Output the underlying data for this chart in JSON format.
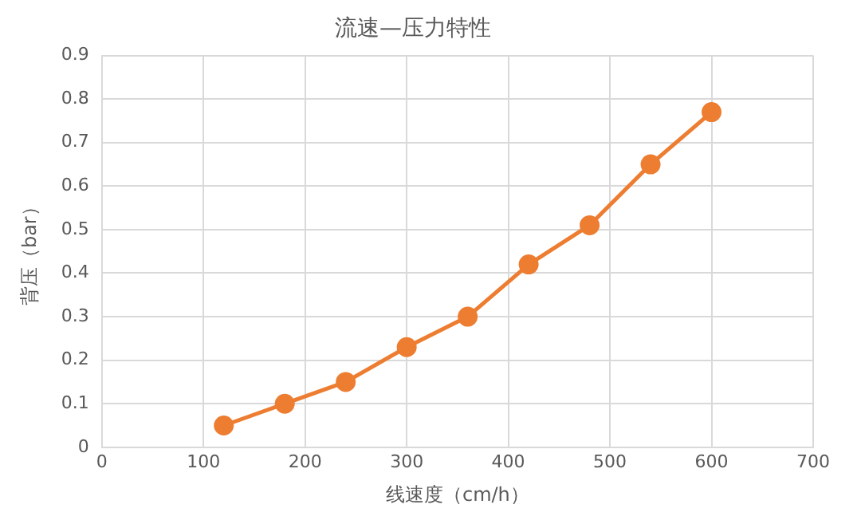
{
  "chart_data": {
    "type": "line",
    "title": "流速—压力特性",
    "xlabel": "线速度（cm/h）",
    "ylabel": "背压（bar）",
    "series": [
      {
        "color": "#ed7d31",
        "x": [
          120,
          180,
          240,
          300,
          360,
          420,
          480,
          540,
          600
        ],
        "values": [
          0.05,
          0.1,
          0.15,
          0.23,
          0.3,
          0.42,
          0.51,
          0.65,
          0.77
        ]
      }
    ],
    "xlim": [
      0,
      700
    ],
    "xticks": [
      0,
      100,
      200,
      300,
      400,
      500,
      600,
      700
    ],
    "ylim": [
      0,
      0.9
    ],
    "yticks": [
      0,
      0.1,
      0.2,
      0.3,
      0.4,
      0.5,
      0.6,
      0.7,
      0.8,
      0.9
    ],
    "grid": true,
    "marker": "circle",
    "legend": false
  }
}
